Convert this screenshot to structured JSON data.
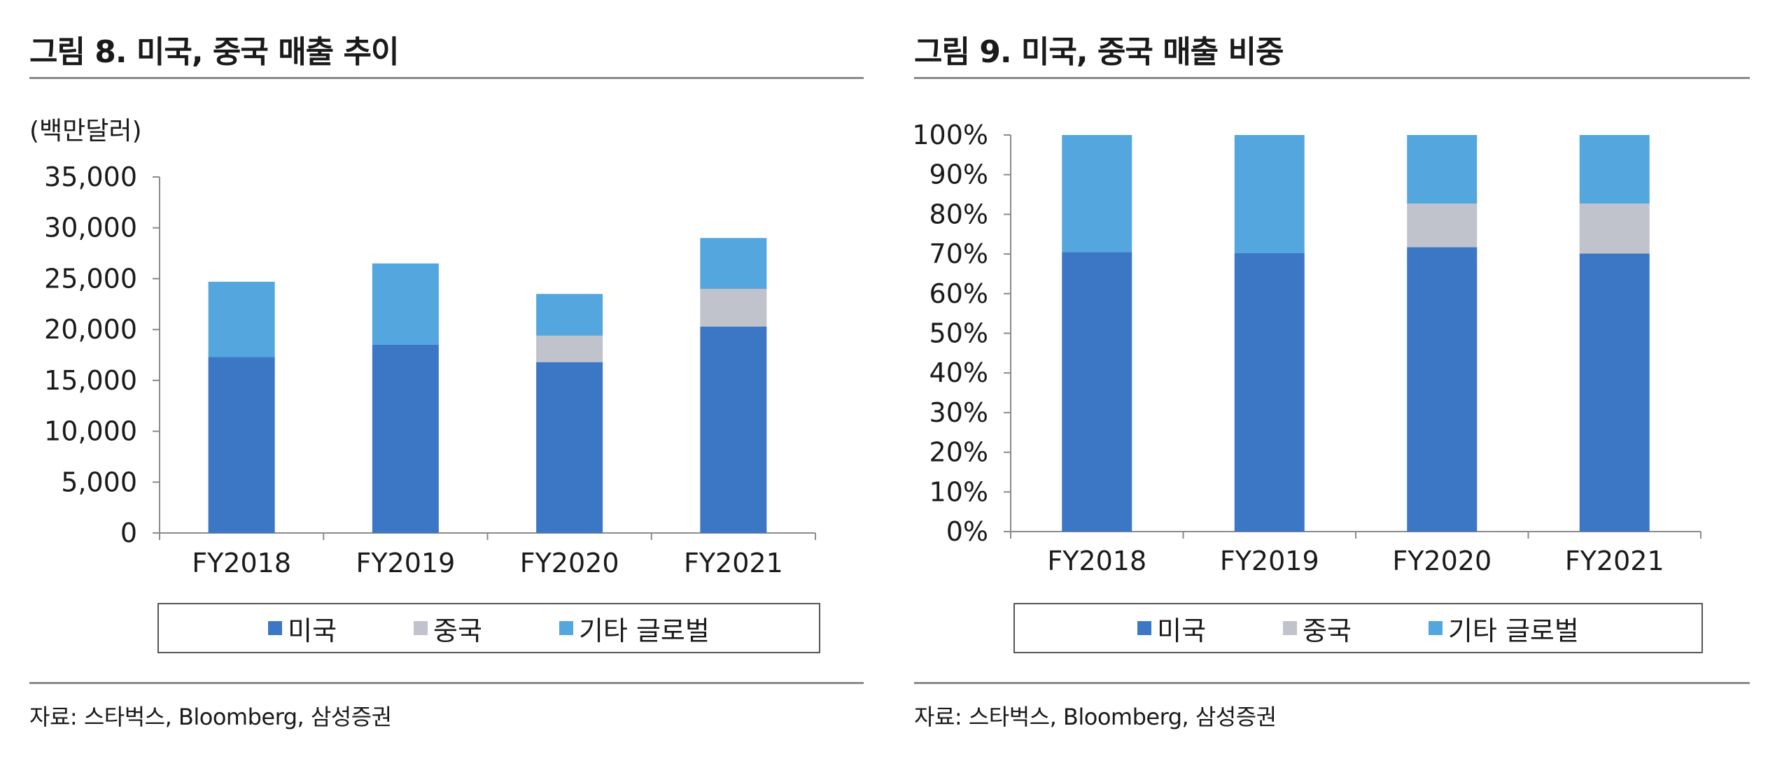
{
  "figure_left": {
    "title": "그림 8. 미국, 중국 매출 추이",
    "unit_label": "(백만달러)",
    "source": "자료: 스타벅스, Bloomberg, 삼성증권"
  },
  "figure_right": {
    "title": "그림 9. 미국, 중국 매출 비중",
    "source": "자료: 스타벅스, Bloomberg, 삼성증권"
  },
  "legend": [
    {
      "label": "미국",
      "color": "#3b77c5"
    },
    {
      "label": "중국",
      "color": "#c0c2cc"
    },
    {
      "label": "기타 글로벌",
      "color": "#53a7de"
    }
  ],
  "chart_data": [
    {
      "type": "bar",
      "stacked": true,
      "title": "그림 8. 미국, 중국 매출 추이",
      "ylabel": "(백만달러)",
      "categories": [
        "FY2018",
        "FY2019",
        "FY2020",
        "FY2021"
      ],
      "ylim": [
        0,
        35000
      ],
      "yticks": [
        "0",
        "5,000",
        "10,000",
        "15,000",
        "20,000",
        "25,000",
        "30,000",
        "35,000"
      ],
      "ytick_values": [
        0,
        5000,
        10000,
        15000,
        20000,
        25000,
        30000,
        35000
      ],
      "series": [
        {
          "name": "미국",
          "color": "#3b77c5",
          "values": [
            17300,
            18500,
            16800,
            20300
          ]
        },
        {
          "name": "중국",
          "color": "#c0c2cc",
          "values": [
            0,
            0,
            2600,
            3700
          ]
        },
        {
          "name": "기타 글로벌",
          "color": "#53a7de",
          "values": [
            7400,
            8000,
            4100,
            5000
          ]
        }
      ],
      "grid": false,
      "legend_position": "bottom"
    },
    {
      "type": "bar",
      "stacked": true,
      "title": "그림 9. 미국, 중국 매출 비중",
      "categories": [
        "FY2018",
        "FY2019",
        "FY2020",
        "FY2021"
      ],
      "ylim": [
        0,
        100
      ],
      "yticks": [
        "0%",
        "10%",
        "20%",
        "30%",
        "40%",
        "50%",
        "60%",
        "70%",
        "80%",
        "90%",
        "100%"
      ],
      "ytick_values": [
        0,
        10,
        20,
        30,
        40,
        50,
        60,
        70,
        80,
        90,
        100
      ],
      "series": [
        {
          "name": "미국",
          "color": "#3b77c5",
          "values": [
            70.5,
            70.2,
            71.7,
            70.1
          ]
        },
        {
          "name": "중국",
          "color": "#c0c2cc",
          "values": [
            0,
            0,
            11.0,
            12.6
          ]
        },
        {
          "name": "기타 글로벌",
          "color": "#53a7de",
          "values": [
            29.5,
            29.8,
            17.3,
            17.3
          ]
        }
      ],
      "grid": false,
      "legend_position": "bottom"
    }
  ]
}
